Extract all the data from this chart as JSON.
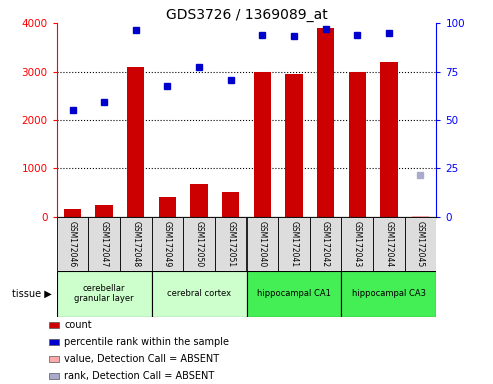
{
  "title": "GDS3726 / 1369089_at",
  "samples": [
    "GSM172046",
    "GSM172047",
    "GSM172048",
    "GSM172049",
    "GSM172050",
    "GSM172051",
    "GSM172040",
    "GSM172041",
    "GSM172042",
    "GSM172043",
    "GSM172044",
    "GSM172045"
  ],
  "bar_values": [
    170,
    255,
    3100,
    410,
    680,
    510,
    3000,
    2940,
    3900,
    3000,
    3200,
    30
  ],
  "bar_absent": [
    false,
    false,
    false,
    false,
    false,
    false,
    false,
    false,
    false,
    false,
    false,
    true
  ],
  "dot_values": [
    2200,
    2380,
    3850,
    2700,
    3100,
    2820,
    3760,
    3740,
    3880,
    3750,
    3800,
    870
  ],
  "dot_absent": [
    false,
    false,
    false,
    false,
    false,
    false,
    false,
    false,
    false,
    false,
    false,
    true
  ],
  "ylim_left": [
    0,
    4000
  ],
  "ylim_right": [
    0,
    100
  ],
  "yticks_left": [
    0,
    1000,
    2000,
    3000,
    4000
  ],
  "yticks_right": [
    0,
    25,
    50,
    75,
    100
  ],
  "tissue_groups": [
    {
      "label": "cerebellar\ngranular layer",
      "start": 0,
      "end": 3,
      "color": "#ccffcc"
    },
    {
      "label": "cerebral cortex",
      "start": 3,
      "end": 6,
      "color": "#ccffcc"
    },
    {
      "label": "hippocampal CA1",
      "start": 6,
      "end": 9,
      "color": "#44ee55"
    },
    {
      "label": "hippocampal CA3",
      "start": 9,
      "end": 12,
      "color": "#44ee55"
    }
  ],
  "bar_color": "#cc0000",
  "bar_absent_color": "#ffaaaa",
  "dot_color": "#0000cc",
  "dot_absent_color": "#aaaacc",
  "legend_items": [
    {
      "label": "count",
      "color": "#cc0000"
    },
    {
      "label": "percentile rank within the sample",
      "color": "#0000cc"
    },
    {
      "label": "value, Detection Call = ABSENT",
      "color": "#ffaaaa"
    },
    {
      "label": "rank, Detection Call = ABSENT",
      "color": "#aaaacc"
    }
  ]
}
